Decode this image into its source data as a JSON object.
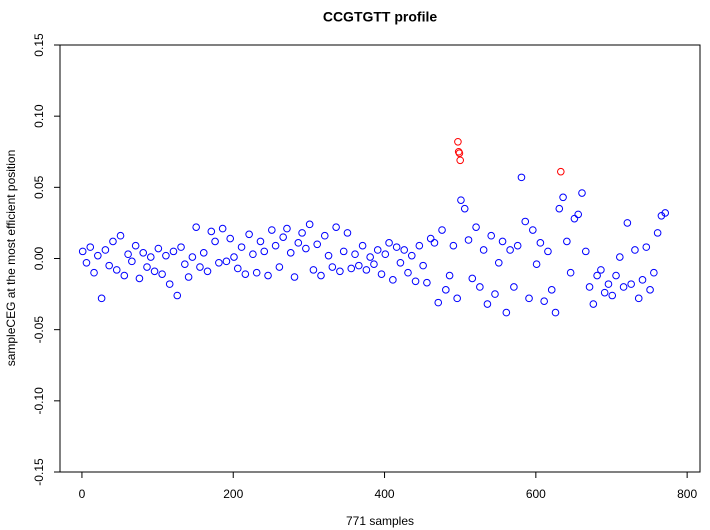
{
  "chart_data": {
    "type": "scatter",
    "title": "CCGTGTT profile",
    "x_label": "771 samples",
    "y_label": "sampleCEG at the most efficient position",
    "xlim": [
      -29,
      817
    ],
    "ylim": [
      -0.15,
      0.15
    ],
    "xticks": [
      0,
      200,
      400,
      600,
      800
    ],
    "yticks": [
      -0.15,
      {
        "value": -0.1,
        "label": "-0.10"
      },
      -0.05,
      {
        "value": 0,
        "label": "0.00"
      },
      0.05,
      {
        "value": 0.1,
        "label": "0.10"
      },
      0.15
    ],
    "series": [
      {
        "color": "#0000ff",
        "x": [
          1,
          6,
          11,
          16,
          21,
          26,
          31,
          36,
          41,
          46,
          51,
          56,
          61,
          66,
          71,
          76,
          81,
          86,
          91,
          96,
          101,
          106,
          111,
          116,
          121,
          126,
          131,
          136,
          141,
          146,
          151,
          156,
          161,
          166,
          171,
          176,
          181,
          186,
          191,
          196,
          201,
          206,
          211,
          216,
          221,
          226,
          231,
          236,
          241,
          246,
          251,
          256,
          261,
          266,
          271,
          276,
          281,
          286,
          291,
          296,
          301,
          306,
          311,
          316,
          321,
          326,
          331,
          336,
          341,
          346,
          351,
          356,
          361,
          366,
          371,
          376,
          381,
          386,
          391,
          396,
          401,
          406,
          411,
          416,
          421,
          426,
          431,
          436,
          441,
          446,
          451,
          456,
          461,
          466,
          471,
          476,
          481,
          486,
          491,
          496,
          501,
          506,
          511,
          516,
          521,
          526,
          531,
          536,
          541,
          546,
          551,
          556,
          561,
          566,
          571,
          576,
          581,
          586,
          591,
          596,
          601,
          606,
          611,
          616,
          621,
          626,
          631,
          636,
          641,
          646,
          651,
          656,
          661,
          666,
          671,
          676,
          681,
          686,
          691,
          696,
          701,
          706,
          711,
          716,
          721,
          726,
          731,
          736,
          741,
          746,
          751,
          756,
          761,
          766,
          771
        ],
        "values": [
          0.005,
          -0.003,
          0.008,
          -0.01,
          0.002,
          -0.028,
          0.006,
          -0.005,
          0.012,
          -0.008,
          0.016,
          -0.012,
          0.003,
          -0.002,
          0.009,
          -0.014,
          0.004,
          -0.006,
          0.001,
          -0.009,
          0.007,
          -0.011,
          0.002,
          -0.018,
          0.005,
          -0.026,
          0.008,
          -0.004,
          -0.013,
          0.001,
          0.022,
          -0.006,
          0.004,
          -0.009,
          0.019,
          0.012,
          -0.003,
          0.021,
          -0.002,
          0.014,
          0.001,
          -0.007,
          0.008,
          -0.011,
          0.017,
          0.003,
          -0.01,
          0.012,
          0.005,
          -0.012,
          0.02,
          0.009,
          -0.006,
          0.015,
          0.021,
          0.004,
          -0.013,
          0.011,
          0.018,
          0.007,
          0.024,
          -0.008,
          0.01,
          -0.012,
          0.016,
          0.002,
          -0.006,
          0.022,
          -0.009,
          0.005,
          0.018,
          -0.007,
          0.003,
          -0.005,
          0.009,
          -0.008,
          0.001,
          -0.004,
          0.006,
          -0.011,
          0.003,
          0.011,
          -0.015,
          0.008,
          -0.003,
          0.006,
          -0.01,
          0.002,
          -0.016,
          0.009,
          -0.005,
          -0.017,
          0.014,
          0.011,
          -0.031,
          0.02,
          -0.022,
          -0.012,
          0.009,
          -0.028,
          0.041,
          0.035,
          0.013,
          -0.014,
          0.022,
          -0.02,
          0.006,
          -0.032,
          0.016,
          -0.025,
          -0.003,
          0.012,
          -0.038,
          0.006,
          -0.02,
          0.009,
          0.057,
          0.026,
          -0.028,
          0.02,
          -0.004,
          0.011,
          -0.03,
          0.005,
          -0.022,
          -0.038,
          0.035,
          0.043,
          0.012,
          -0.01,
          0.028,
          0.031,
          0.046,
          0.005,
          -0.02,
          -0.032,
          -0.012,
          -0.008,
          -0.024,
          -0.018,
          -0.026,
          -0.012,
          0.001,
          -0.02,
          0.025,
          -0.018,
          0.006,
          -0.028,
          -0.015,
          0.008,
          -0.022,
          -0.01,
          0.018,
          0.03,
          0.032
        ]
      },
      {
        "color": "#ff0000",
        "x": [
          497,
          498,
          499,
          500,
          633
        ],
        "values": [
          0.082,
          0.075,
          0.074,
          0.069,
          0.061
        ]
      }
    ]
  }
}
